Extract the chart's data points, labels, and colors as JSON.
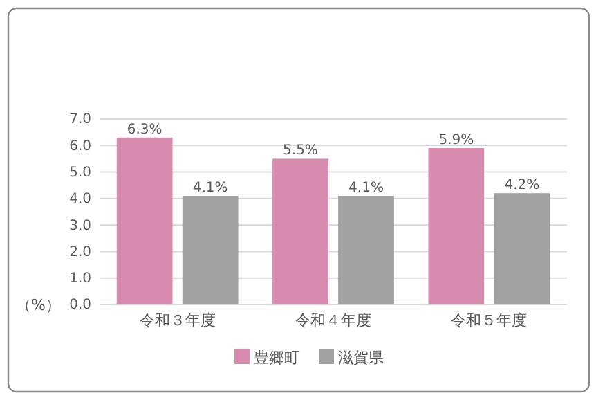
{
  "chart_data": {
    "type": "bar",
    "ylabel": "（%）",
    "categories": [
      "令和３年度",
      "令和４年度",
      "令和５年度"
    ],
    "series": [
      {
        "name": "豊郷町",
        "color": "#d98aaf",
        "values": [
          6.3,
          5.5,
          5.9
        ],
        "value_labels": [
          "6.3%",
          "5.5%",
          "5.9%"
        ]
      },
      {
        "name": "滋賀県",
        "color": "#a0a1a0",
        "values": [
          4.1,
          4.1,
          4.2
        ],
        "value_labels": [
          "4.1%",
          "4.1%",
          "4.2%"
        ]
      }
    ],
    "ylim": [
      0,
      7
    ],
    "yticks": [
      {
        "value": 0,
        "label": "0.0"
      },
      {
        "value": 1,
        "label": "1.0"
      },
      {
        "value": 2,
        "label": "2.0"
      },
      {
        "value": 3,
        "label": "3.0"
      },
      {
        "value": 4,
        "label": "4.0"
      },
      {
        "value": 5,
        "label": "5.0"
      },
      {
        "value": 6,
        "label": "6.0"
      },
      {
        "value": 7,
        "label": "7.0"
      }
    ],
    "grid": "y",
    "legend": "bottom"
  }
}
